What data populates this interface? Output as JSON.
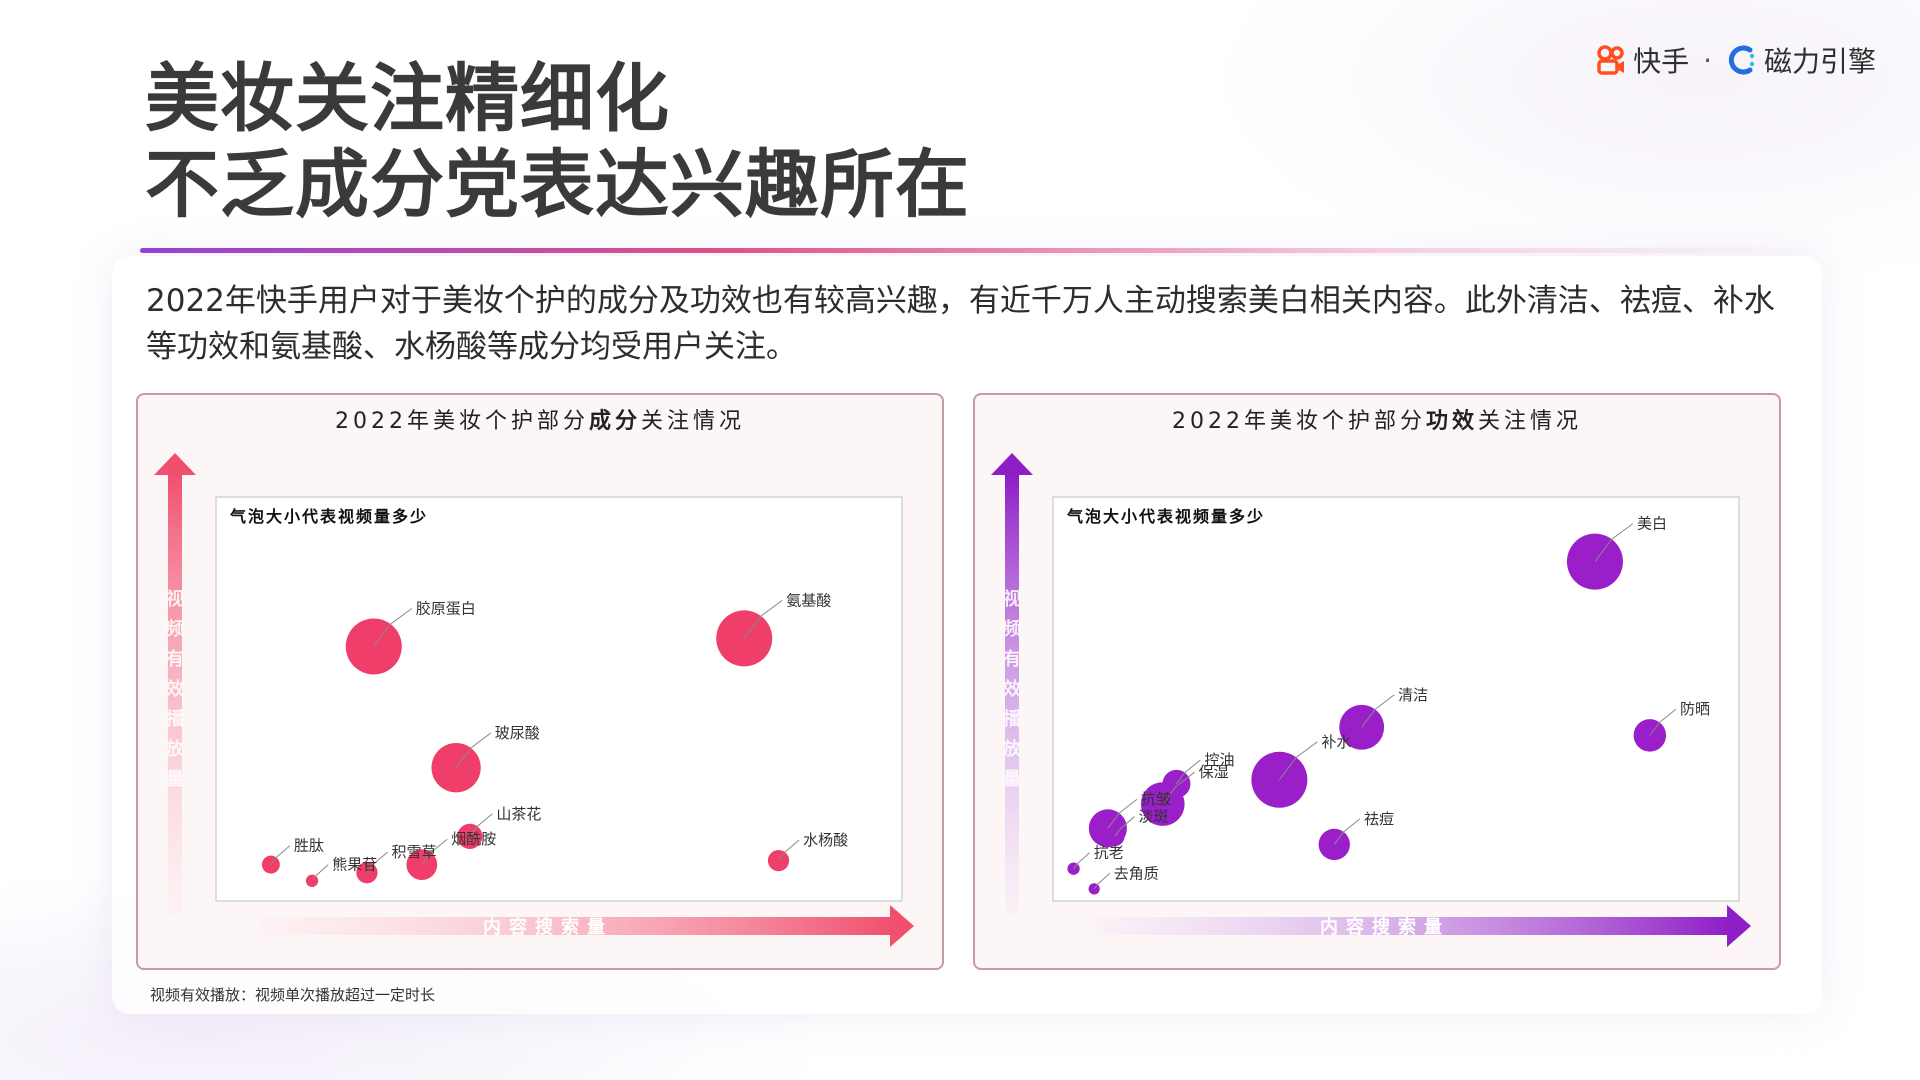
{
  "slide": {
    "title_line1": "美妆关注精细化",
    "title_line2": "不乏成分党表达兴趣所在",
    "intro": "2022年快手用户对于美妆个护的成分及功效也有较高兴趣，有近千万人主动搜索美白相关内容。此外清洁、祛痘、补水等功效和氨基酸、水杨酸等成分均受用户关注。",
    "footnote": "视频有效播放：视频单次播放超过一定时长"
  },
  "brand": {
    "name1": "快手",
    "separator": "·",
    "name2": "磁力引擎",
    "icon1": "kuaishou-logo-icon",
    "icon2": "cili-engine-logo-icon"
  },
  "colors": {
    "title": "#3a3a3a",
    "ingredient_bubble": "#ef3e6a",
    "efficacy_bubble": "#9b1fc9",
    "panel_border": "#c99aa3"
  },
  "chart_data": [
    {
      "type": "scatter",
      "title_prefix": "2022年美妆个护部分",
      "title_bold": "成分",
      "title_suffix": "关注情况",
      "xlabel": "内容搜索量",
      "ylabel": "视频有效播放量",
      "legend_note": "气泡大小代表视频量多少",
      "color": "#ef3e6a",
      "points": [
        {
          "label": "胶原蛋白",
          "x": 0.23,
          "y": 0.63,
          "size": 1.0
        },
        {
          "label": "氨基酸",
          "x": 0.77,
          "y": 0.65,
          "size": 1.0
        },
        {
          "label": "玻尿酸",
          "x": 0.35,
          "y": 0.33,
          "size": 0.88
        },
        {
          "label": "山茶花",
          "x": 0.37,
          "y": 0.16,
          "size": 0.45
        },
        {
          "label": "水杨酸",
          "x": 0.82,
          "y": 0.1,
          "size": 0.38
        },
        {
          "label": "烟酰胺",
          "x": 0.3,
          "y": 0.09,
          "size": 0.55
        },
        {
          "label": "积雪草",
          "x": 0.22,
          "y": 0.07,
          "size": 0.38
        },
        {
          "label": "胜肽",
          "x": 0.08,
          "y": 0.09,
          "size": 0.32
        },
        {
          "label": "熊果苷",
          "x": 0.14,
          "y": 0.05,
          "size": 0.22
        }
      ]
    },
    {
      "type": "scatter",
      "title_prefix": "2022年美妆个护部分",
      "title_bold": "功效",
      "title_suffix": "关注情况",
      "xlabel": "内容搜索量",
      "ylabel": "视频有效播放量",
      "legend_note": "气泡大小代表视频量多少",
      "color": "#9b1fc9",
      "points": [
        {
          "label": "美白",
          "x": 0.79,
          "y": 0.84,
          "size": 1.0
        },
        {
          "label": "清洁",
          "x": 0.45,
          "y": 0.43,
          "size": 0.8
        },
        {
          "label": "防晒",
          "x": 0.87,
          "y": 0.41,
          "size": 0.58
        },
        {
          "label": "补水",
          "x": 0.33,
          "y": 0.3,
          "size": 1.0
        },
        {
          "label": "控油",
          "x": 0.18,
          "y": 0.29,
          "size": 0.5
        },
        {
          "label": "保湿",
          "x": 0.16,
          "y": 0.24,
          "size": 0.78
        },
        {
          "label": "抗皱",
          "x": 0.08,
          "y": 0.18,
          "size": 0.68
        },
        {
          "label": "淡斑",
          "x": 0.09,
          "y": 0.16,
          "size": 0.35
        },
        {
          "label": "祛痘",
          "x": 0.41,
          "y": 0.14,
          "size": 0.56
        },
        {
          "label": "抗老",
          "x": 0.03,
          "y": 0.08,
          "size": 0.22
        },
        {
          "label": "去角质",
          "x": 0.06,
          "y": 0.03,
          "size": 0.2
        }
      ]
    }
  ]
}
